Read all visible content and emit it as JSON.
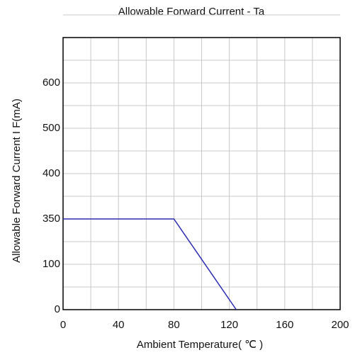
{
  "chart_data": {
    "type": "line",
    "title": "Allowable Forward Current - Ta",
    "x_label": "Ambient Temperature( ℃ )",
    "y_label": "Allowable Forward Current I F(mA)",
    "x": [
      0,
      80,
      125
    ],
    "series": [
      {
        "name": "IF",
        "color": "#2b2bb0",
        "values": [
          350,
          350,
          0
        ]
      }
    ],
    "xlim": [
      0,
      200
    ],
    "xticks": [
      0,
      40,
      80,
      120,
      160,
      200
    ],
    "ylim": [
      0,
      700
    ],
    "yticks": [
      0,
      100,
      350,
      400,
      500,
      600
    ],
    "grid": true
  }
}
